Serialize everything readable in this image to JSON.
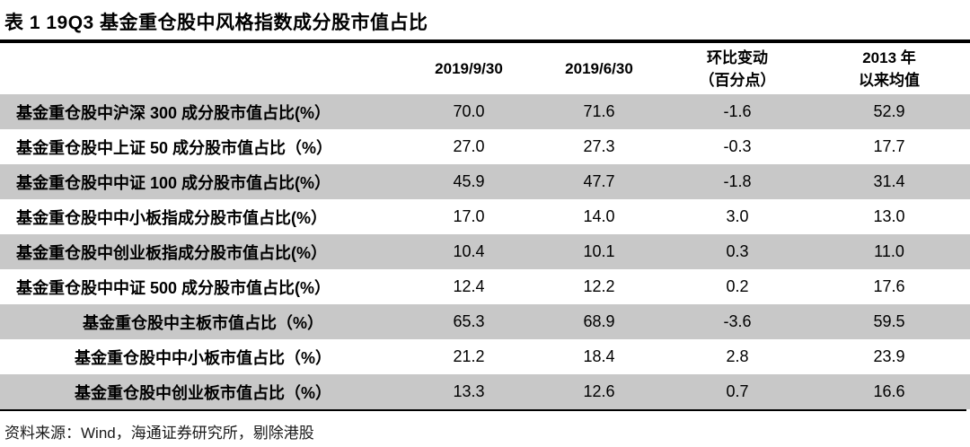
{
  "title": "表 1 19Q3 基金重仓股中风格指数成分股市值占比",
  "table": {
    "header": {
      "label_col": "",
      "date1": "2019/9/30",
      "date2": "2019/6/30",
      "change_line1": "环比变动",
      "change_line2": "（百分点）",
      "avg_line1": "2013 年",
      "avg_line2": "以来均值"
    },
    "rows": [
      {
        "label": "基金重仓股中沪深 300 成分股市值占比(%）",
        "values": [
          "70.0",
          "71.6",
          "-1.6",
          "52.9"
        ],
        "centered": false
      },
      {
        "label": "基金重仓股中上证 50 成分股市值占比（%）",
        "values": [
          "27.0",
          "27.3",
          "-0.3",
          "17.7"
        ],
        "centered": false
      },
      {
        "label": "基金重仓股中中证 100 成分股市值占比(%）",
        "values": [
          "45.9",
          "47.7",
          "-1.8",
          "31.4"
        ],
        "centered": false
      },
      {
        "label": "基金重仓股中中小板指成分股市值占比(%）",
        "values": [
          "17.0",
          "14.0",
          "3.0",
          "13.0"
        ],
        "centered": false
      },
      {
        "label": "基金重仓股中创业板指成分股市值占比(%）",
        "values": [
          "10.4",
          "10.1",
          "0.3",
          "11.0"
        ],
        "centered": false
      },
      {
        "label": "基金重仓股中中证 500 成分股市值占比(%）",
        "values": [
          "12.4",
          "12.2",
          "0.2",
          "17.6"
        ],
        "centered": false
      },
      {
        "label": "基金重仓股中主板市值占比（%）",
        "values": [
          "65.3",
          "68.9",
          "-3.6",
          "59.5"
        ],
        "centered": true
      },
      {
        "label": "基金重仓股中中小板市值占比（%）",
        "values": [
          "21.2",
          "18.4",
          "2.8",
          "23.9"
        ],
        "centered": true
      },
      {
        "label": "基金重仓股中创业板市值占比（%）",
        "values": [
          "13.3",
          "12.6",
          "0.7",
          "16.6"
        ],
        "centered": true
      }
    ]
  },
  "footer": "资料来源：Wind，海通证券研究所，剔除港股",
  "colors": {
    "row_shade": "#c8c8c8",
    "rule": "#000000",
    "background": "#ffffff",
    "text": "#000000"
  }
}
